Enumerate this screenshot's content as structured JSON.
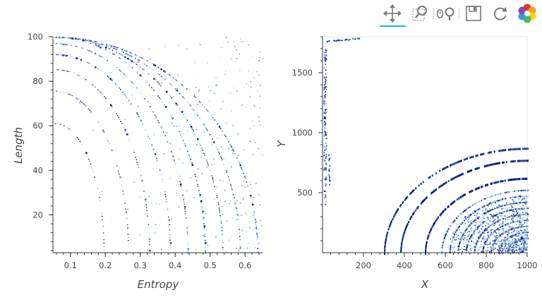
{
  "toolbar": {
    "tools": [
      {
        "name": "pan-tool",
        "icon": "pan-arrows-icon",
        "active": true
      },
      {
        "name": "box-zoom-tool",
        "icon": "box-zoom-icon",
        "active": false
      },
      {
        "name": "wheel-zoom-tool",
        "icon": "wheel-zoom-icon",
        "active": false
      },
      {
        "name": "save-tool",
        "icon": "save-icon",
        "active": false
      },
      {
        "name": "reset-tool",
        "icon": "reset-icon",
        "active": false
      },
      {
        "name": "bokeh-logo",
        "icon": "bokeh-logo-icon",
        "active": false
      }
    ],
    "active_color": "#26aae1"
  },
  "chart_data": [
    {
      "type": "scatter",
      "xlabel": "Entropy",
      "ylabel": "Length",
      "xlim": [
        0.05,
        0.65
      ],
      "ylim": [
        3,
        100
      ],
      "x_ticks": [
        0.1,
        0.2,
        0.3,
        0.4,
        0.5,
        0.6
      ],
      "x_tick_labels": [
        "0.1",
        "0.2",
        "0.3",
        "0.4",
        "0.5",
        "0.6"
      ],
      "y_ticks": [
        20,
        40,
        60,
        80,
        100
      ],
      "y_tick_labels": [
        "20",
        "40",
        "60",
        "80",
        "100"
      ],
      "grid": false,
      "colors": [
        "#d6eef5",
        "#9fc8e0",
        "#5e8fc6",
        "#1f3fa8",
        "#0a1a7a"
      ],
      "description_arcs": [
        {
          "radius_x": 0.14,
          "radius_y": 60
        },
        {
          "radius_x": 0.21,
          "radius_y": 75
        },
        {
          "radius_x": 0.27,
          "radius_y": 85
        },
        {
          "radius_x": 0.33,
          "radius_y": 92
        },
        {
          "radius_x": 0.38,
          "radius_y": 97
        },
        {
          "radius_x": 0.43,
          "radius_y": 100
        },
        {
          "radius_x": 0.48,
          "radius_y": 100
        },
        {
          "radius_x": 0.53,
          "radius_y": 100
        },
        {
          "radius_x": 0.58,
          "radius_y": 100
        }
      ]
    },
    {
      "type": "heatmap",
      "xlabel": "X",
      "ylabel": "Y",
      "xlim": [
        0,
        1000
      ],
      "ylim": [
        0,
        1800
      ],
      "x_ticks": [
        200,
        400,
        600,
        800,
        1000
      ],
      "x_tick_labels": [
        "200",
        "400",
        "600",
        "800",
        "1000"
      ],
      "y_ticks": [
        500,
        1000,
        1500
      ],
      "y_tick_labels": [
        "500",
        "1000",
        "1500"
      ],
      "grid": false,
      "colors": [
        "#d6eef5",
        "#9fc8e0",
        "#5e8fc6",
        "#1f3fa8",
        "#0a1a7a"
      ],
      "rings_center": [
        1000,
        0
      ],
      "rings_radii": [
        100,
        140,
        180,
        220,
        260,
        300,
        340,
        380,
        420,
        500,
        620,
        700
      ]
    }
  ]
}
